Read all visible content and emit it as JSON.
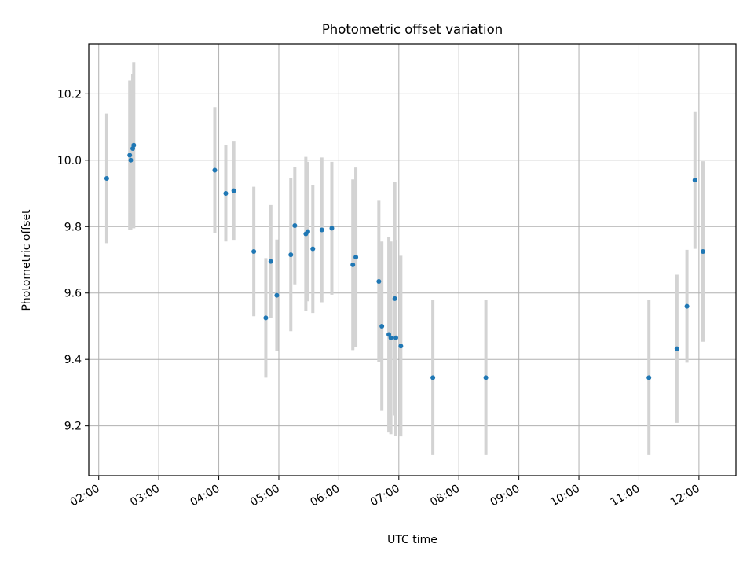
{
  "chart_data": {
    "type": "scatter",
    "title": "Photometric offset variation",
    "xlabel": "UTC time",
    "ylabel": "Photometric offset",
    "xlim": [
      "01:50",
      "12:37"
    ],
    "ylim": [
      9.05,
      10.35
    ],
    "x_ticks": [
      "02:00",
      "03:00",
      "04:00",
      "05:00",
      "06:00",
      "07:00",
      "08:00",
      "09:00",
      "10:00",
      "11:00",
      "12:00"
    ],
    "y_ticks": [
      9.2,
      9.4,
      9.6,
      9.8,
      10.0,
      10.2
    ],
    "grid": true,
    "colors": {
      "point": "#1f77b4",
      "errorbar": "#d3d3d3",
      "grid": "#b0b0b0"
    },
    "points": [
      {
        "x": "02:08",
        "y": 9.945,
        "err": 0.195
      },
      {
        "x": "02:31",
        "y": 10.015,
        "err": 0.225
      },
      {
        "x": "02:32",
        "y": 10.0,
        "err": 0.21
      },
      {
        "x": "02:34",
        "y": 10.035,
        "err": 0.225
      },
      {
        "x": "02:35",
        "y": 10.045,
        "err": 0.25
      },
      {
        "x": "03:56",
        "y": 9.97,
        "err": 0.19
      },
      {
        "x": "04:07",
        "y": 9.9,
        "err": 0.145
      },
      {
        "x": "04:15",
        "y": 9.908,
        "err": 0.148
      },
      {
        "x": "04:35",
        "y": 9.725,
        "err": 0.195
      },
      {
        "x": "04:47",
        "y": 9.525,
        "err": 0.18
      },
      {
        "x": "04:52",
        "y": 9.695,
        "err": 0.17
      },
      {
        "x": "04:58",
        "y": 9.593,
        "err": 0.168
      },
      {
        "x": "05:12",
        "y": 9.715,
        "err": 0.23
      },
      {
        "x": "05:16",
        "y": 9.803,
        "err": 0.177
      },
      {
        "x": "05:27",
        "y": 9.778,
        "err": 0.232
      },
      {
        "x": "05:29",
        "y": 9.785,
        "err": 0.21
      },
      {
        "x": "05:34",
        "y": 9.733,
        "err": 0.193
      },
      {
        "x": "05:43",
        "y": 9.79,
        "err": 0.218
      },
      {
        "x": "05:53",
        "y": 9.795,
        "err": 0.2
      },
      {
        "x": "06:14",
        "y": 9.685,
        "err": 0.257
      },
      {
        "x": "06:17",
        "y": 9.708,
        "err": 0.27
      },
      {
        "x": "06:40",
        "y": 9.635,
        "err": 0.243
      },
      {
        "x": "06:43",
        "y": 9.5,
        "err": 0.255
      },
      {
        "x": "06:50",
        "y": 9.475,
        "err": 0.295
      },
      {
        "x": "06:52",
        "y": 9.465,
        "err": 0.29
      },
      {
        "x": "06:56",
        "y": 9.583,
        "err": 0.352
      },
      {
        "x": "06:57",
        "y": 9.465,
        "err": 0.295
      },
      {
        "x": "07:02",
        "y": 9.44,
        "err": 0.272
      },
      {
        "x": "07:34",
        "y": 9.345,
        "err": 0.233
      },
      {
        "x": "08:27",
        "y": 9.345,
        "err": 0.233
      },
      {
        "x": "11:10",
        "y": 9.345,
        "err": 0.233
      },
      {
        "x": "11:38",
        "y": 9.432,
        "err": 0.223
      },
      {
        "x": "11:48",
        "y": 9.56,
        "err": 0.17
      },
      {
        "x": "11:56",
        "y": 9.94,
        "err": 0.207
      },
      {
        "x": "12:04",
        "y": 9.725,
        "err": 0.272
      }
    ]
  }
}
